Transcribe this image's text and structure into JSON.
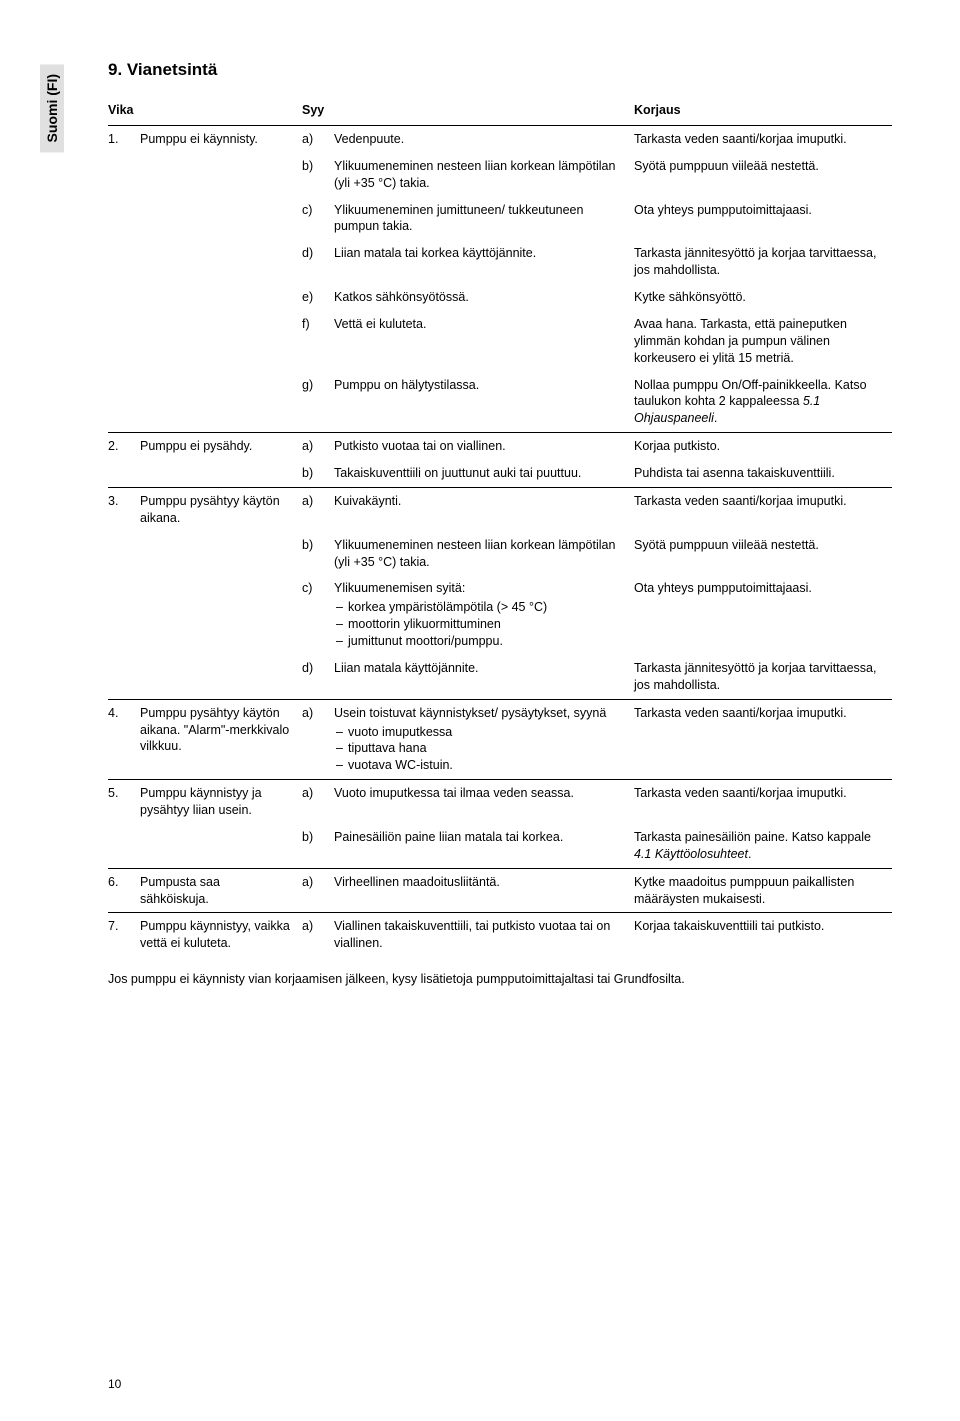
{
  "sideTab": "Suomi (FI)",
  "sectionTitle": "9. Vianetsintä",
  "headers": {
    "fault": "Vika",
    "cause": "Syy",
    "remedy": "Korjaus"
  },
  "rows": [
    {
      "sep": true,
      "fn": "1.",
      "ft": "Pumppu ei käynnisty.",
      "cl": "a)",
      "ct": "Vedenpuute.",
      "r": "Tarkasta veden saanti/korjaa imuputki."
    },
    {
      "cl": "b)",
      "ct": "Ylikuumeneminen nesteen liian korkean lämpötilan (yli +35 °C) takia.",
      "r": "Syötä pumppuun viileää nestettä."
    },
    {
      "cl": "c)",
      "ct": "Ylikuumeneminen jumittuneen/ tukkeutuneen pumpun takia.",
      "r": "Ota yhteys pumpputoimittajaasi."
    },
    {
      "cl": "d)",
      "ct": "Liian matala tai korkea käyttöjännite.",
      "r": "Tarkasta jännitesyöttö ja korjaa tarvittaessa, jos mahdollista."
    },
    {
      "cl": "e)",
      "ct": "Katkos sähkönsyötössä.",
      "r": "Kytke sähkönsyöttö."
    },
    {
      "cl": "f)",
      "ct": "Vettä ei kuluteta.",
      "r": "Avaa hana. Tarkasta, että paineputken ylimmän kohdan ja pumpun välinen korkeusero ei ylitä 15 metriä."
    },
    {
      "cl": "g)",
      "ct": "Pumppu on hälytystilassa.",
      "r": "Nollaa pumppu On/Off-painikkeella. Katso taulukon kohta 2 kappaleessa 5.1 Ohjauspaneeli.",
      "remItalic": "5.1 Ohjauspaneeli"
    },
    {
      "sep": true,
      "fn": "2.",
      "ft": "Pumppu ei pysähdy.",
      "cl": "a)",
      "ct": "Putkisto vuotaa tai on viallinen.",
      "r": "Korjaa putkisto."
    },
    {
      "cl": "b)",
      "ct": "Takaiskuventtiili on juuttunut auki tai puuttuu.",
      "r": "Puhdista tai asenna takaiskuventtiili."
    },
    {
      "sep": true,
      "fn": "3.",
      "ft": "Pumppu pysähtyy käytön aikana.",
      "cl": "a)",
      "ct": "Kuivakäynti.",
      "r": "Tarkasta veden saanti/korjaa imuputki."
    },
    {
      "cl": "b)",
      "ct": "Ylikuumeneminen nesteen liian korkean lämpötilan (yli +35 °C) takia.",
      "r": "Syötä pumppuun viileää nestettä."
    },
    {
      "cl": "c)",
      "ct": "Ylikuumenemisen syitä:",
      "sub": [
        "korkea ympäristölämpötila (> 45 °C)",
        "moottorin ylikuormittuminen",
        "jumittunut moottori/pumppu."
      ],
      "r": "Ota yhteys pumpputoimittajaasi."
    },
    {
      "cl": "d)",
      "ct": "Liian matala käyttöjännite.",
      "r": "Tarkasta jännitesyöttö ja korjaa tarvittaessa, jos mahdollista."
    },
    {
      "sep": true,
      "fn": "4.",
      "ft": "Pumppu pysähtyy käytön aikana. \"Alarm\"-merkkivalo vilkkuu.",
      "cl": "a)",
      "ct": "Usein toistuvat käynnistykset/ pysäytykset, syynä",
      "sub": [
        "vuoto imuputkessa",
        "tiputtava hana",
        "vuotava WC-istuin."
      ],
      "r": "Tarkasta veden saanti/korjaa imuputki."
    },
    {
      "sep": true,
      "fn": "5.",
      "ft": "Pumppu käynnistyy ja pysähtyy liian usein.",
      "cl": "a)",
      "ct": "Vuoto imuputkessa tai ilmaa veden seassa.",
      "r": "Tarkasta veden saanti/korjaa imuputki."
    },
    {
      "cl": "b)",
      "ct": "Painesäiliön paine liian matala tai korkea.",
      "r": "Tarkasta painesäiliön paine. Katso kappale 4.1 Käyttöolosuhteet.",
      "remItalic": "4.1 Käyttöolosuhteet"
    },
    {
      "sep": true,
      "fn": "6.",
      "ft": "Pumpusta saa sähköiskuja.",
      "cl": "a)",
      "ct": "Virheellinen maadoitusliitäntä.",
      "r": "Kytke maadoitus pumppuun paikallisten määräysten mukaisesti."
    },
    {
      "sep": true,
      "fn": "7.",
      "ft": "Pumppu käynnistyy, vaikka vettä ei kuluteta.",
      "cl": "a)",
      "ct": "Viallinen takaiskuventtiili, tai putkisto vuotaa tai on viallinen.",
      "r": "Korjaa takaiskuventtiili tai putkisto."
    }
  ],
  "note": "Jos pumppu ei käynnisty vian korjaamisen jälkeen, kysy lisätietoja pumpputoimittajaltasi tai Grundfosilta.",
  "pageNumber": "10",
  "colors": {
    "bg": "#ffffff",
    "text": "#000000",
    "tab_bg": "#e0e0e0",
    "hr": "#000000"
  },
  "fontsize": {
    "title": 17,
    "body": 12.5,
    "page_num": 12,
    "side_tab": 14
  }
}
